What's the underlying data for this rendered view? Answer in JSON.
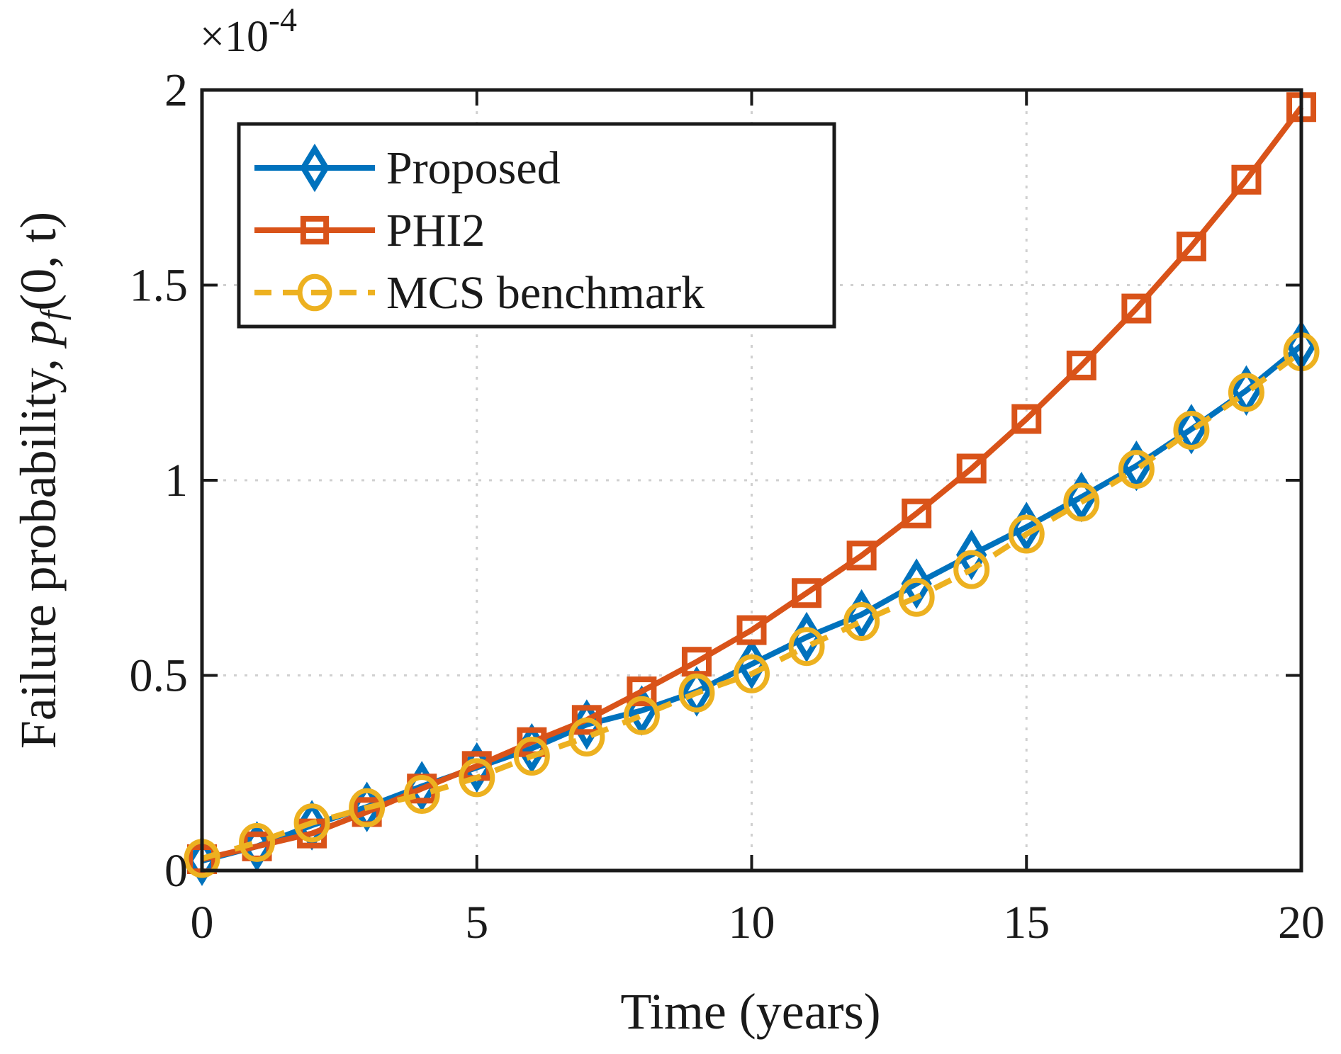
{
  "chart_data": {
    "type": "line",
    "title": "",
    "xlabel": "Time (years)",
    "ylabel_text": "Failure probability, ",
    "ylabel_math": "p",
    "ylabel_sub": "f",
    "ylabel_args": "(0, t)",
    "y_multiplier": "×10",
    "y_multiplier_exp": "-4",
    "xlim": [
      0,
      20
    ],
    "ylim": [
      0,
      2
    ],
    "xticks": [
      0,
      5,
      10,
      15,
      20
    ],
    "xtick_labels": [
      "0",
      "5",
      "10",
      "15",
      "20"
    ],
    "yticks": [
      0,
      0.5,
      1,
      1.5,
      2
    ],
    "ytick_labels": [
      "0",
      "0.5",
      "1",
      "1.5",
      "2"
    ],
    "grid": true,
    "legend_position": "top-left",
    "x": [
      0,
      1,
      2,
      3,
      4,
      5,
      6,
      7,
      8,
      9,
      10,
      11,
      12,
      13,
      14,
      15,
      16,
      17,
      18,
      19,
      20
    ],
    "series": [
      {
        "name": "Proposed",
        "color": "#0072BD",
        "marker": "diamond",
        "line": "solid",
        "values": [
          0.025,
          0.062,
          0.116,
          0.163,
          0.216,
          0.264,
          0.313,
          0.374,
          0.41,
          0.459,
          0.529,
          0.598,
          0.656,
          0.735,
          0.809,
          0.88,
          0.957,
          1.037,
          1.131,
          1.23,
          1.345
        ]
      },
      {
        "name": "PHI2",
        "color": "#D95319",
        "marker": "square",
        "line": "solid",
        "values": [
          0.029,
          0.062,
          0.095,
          0.15,
          0.21,
          0.268,
          0.329,
          0.386,
          0.459,
          0.535,
          0.616,
          0.711,
          0.807,
          0.915,
          1.03,
          1.157,
          1.294,
          1.44,
          1.599,
          1.77,
          1.956
        ]
      },
      {
        "name": "MCS benchmark",
        "color": "#EDB120",
        "marker": "circle",
        "line": "dashed",
        "values": [
          0.031,
          0.072,
          0.122,
          0.161,
          0.195,
          0.238,
          0.293,
          0.342,
          0.397,
          0.455,
          0.504,
          0.574,
          0.638,
          0.7,
          0.771,
          0.862,
          0.944,
          1.028,
          1.128,
          1.225,
          1.329
        ]
      }
    ]
  }
}
